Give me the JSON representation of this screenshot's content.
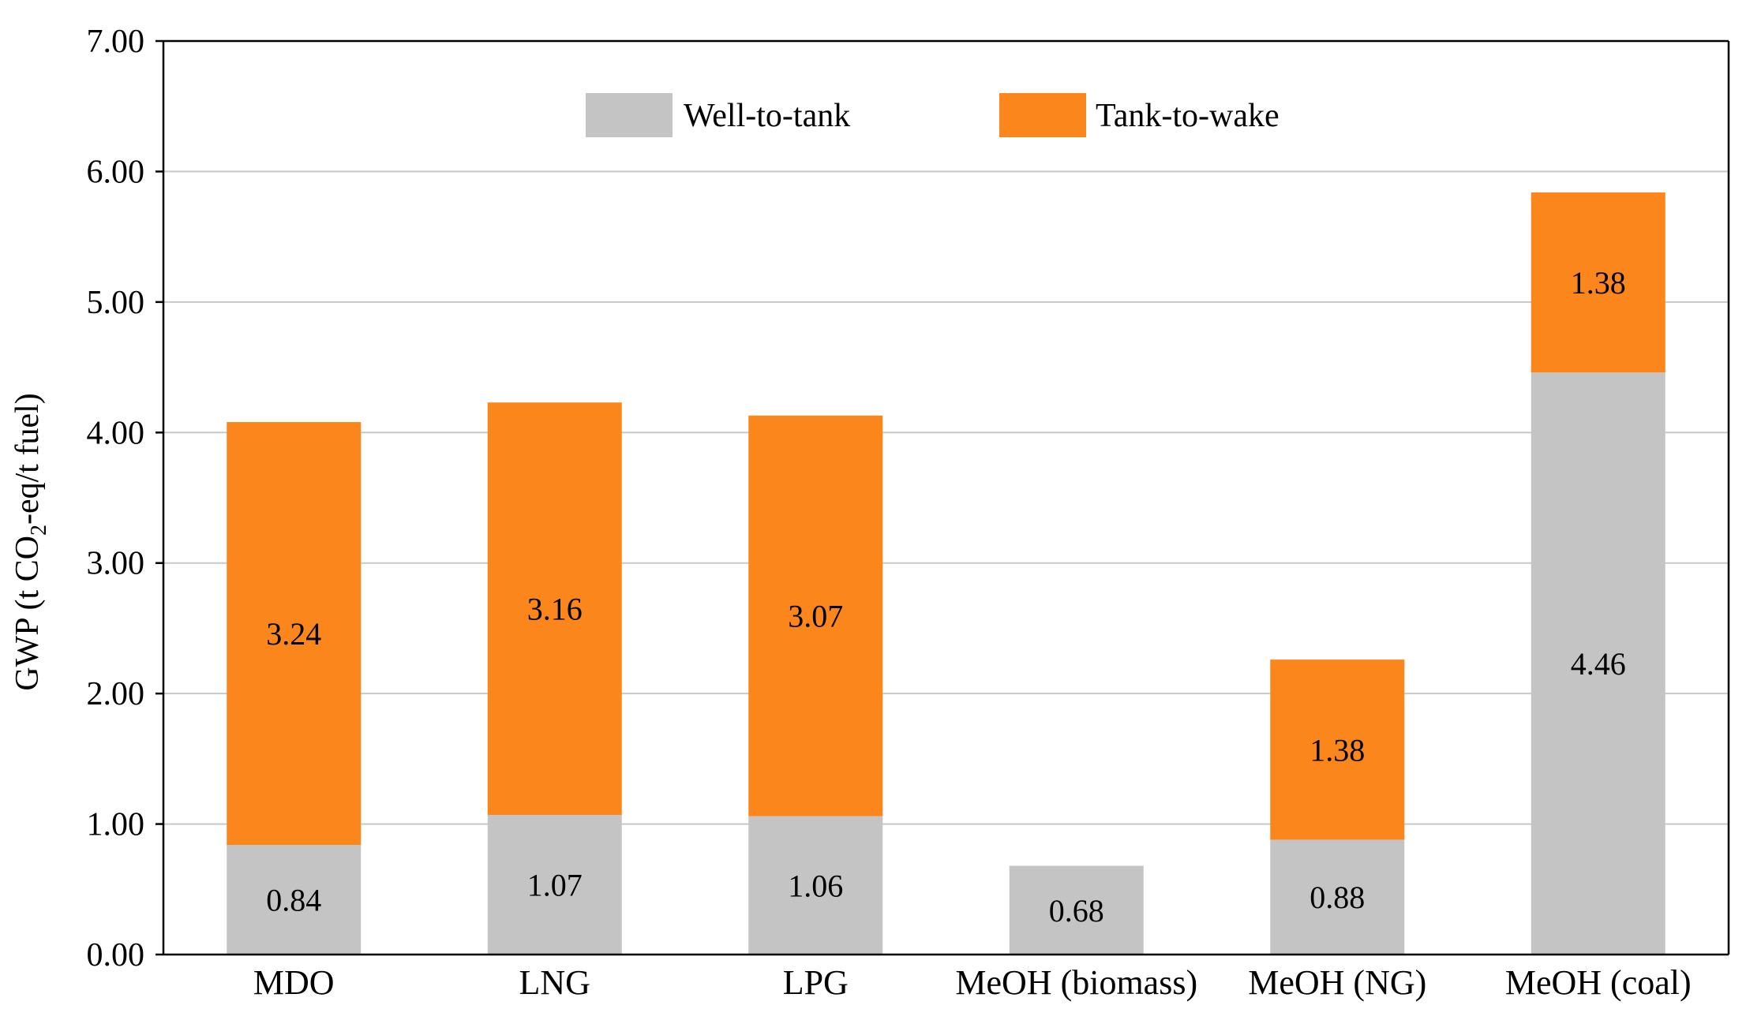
{
  "chart_data": {
    "type": "bar",
    "stacked": true,
    "title": "",
    "xlabel": "",
    "ylabel": "GWP (t CO2-eq/t fuel)",
    "ylabel_parts": {
      "pre": "GWP (t CO",
      "sub": "2",
      "post": "-eq/t fuel)"
    },
    "ylim": [
      0,
      7
    ],
    "yticks": [
      0,
      1,
      2,
      3,
      4,
      5,
      6,
      7
    ],
    "ytick_labels": [
      "0.00",
      "1.00",
      "2.00",
      "3.00",
      "4.00",
      "5.00",
      "6.00",
      "7.00"
    ],
    "grid": true,
    "legend_position": "top-center",
    "categories": [
      "MDO",
      "LNG",
      "LPG",
      "MeOH (biomass)",
      "MeOH (NG)",
      "MeOH (coal)"
    ],
    "series": [
      {
        "name": "Well-to-tank",
        "color": "#c4c4c4",
        "values": [
          0.84,
          1.07,
          1.06,
          0.68,
          0.88,
          4.46
        ],
        "labels": [
          "0.84",
          "1.07",
          "1.06",
          "0.68",
          "0.88",
          "4.46"
        ]
      },
      {
        "name": "Tank-to-wake",
        "color": "#fb861b",
        "values": [
          3.24,
          3.16,
          3.07,
          0,
          1.38,
          1.38
        ],
        "labels": [
          "3.24",
          "3.16",
          "3.07",
          "",
          "1.38",
          "1.38"
        ]
      }
    ]
  }
}
